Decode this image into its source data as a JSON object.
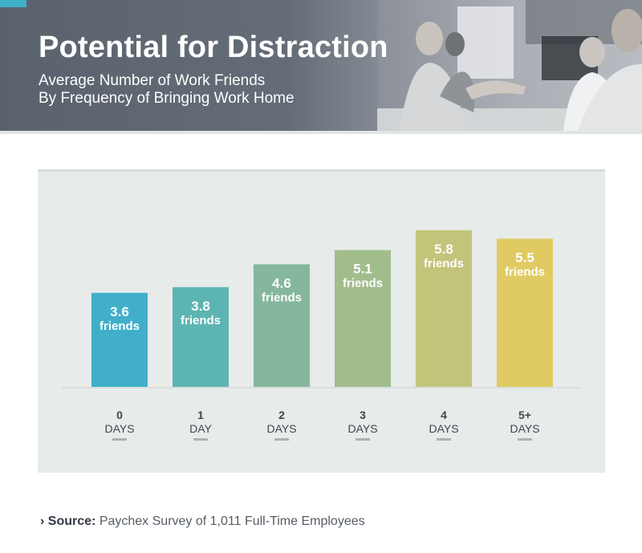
{
  "header": {
    "title": "Potential for Distraction",
    "subtitle_line1": "Average Number of Work Friends",
    "subtitle_line2": "By Frequency of Bringing Work Home"
  },
  "chart_data": {
    "type": "bar",
    "title": "Potential for Distraction",
    "subtitle": "Average Number of Work Friends By Frequency of Bringing Work Home",
    "categories": [
      {
        "num": "0",
        "unit": "DAYS"
      },
      {
        "num": "1",
        "unit": "DAY"
      },
      {
        "num": "2",
        "unit": "DAYS"
      },
      {
        "num": "3",
        "unit": "DAYS"
      },
      {
        "num": "4",
        "unit": "DAYS"
      },
      {
        "num": "5+",
        "unit": "DAYS"
      }
    ],
    "values": [
      3.6,
      3.8,
      4.6,
      5.1,
      5.8,
      5.5
    ],
    "value_labels": [
      "3.6",
      "3.8",
      "4.6",
      "5.1",
      "5.8",
      "5.5"
    ],
    "value_unit": "friends",
    "colors": [
      "#41afc9",
      "#5cb5b3",
      "#84b79c",
      "#a2bd8c",
      "#c2c47a",
      "#e0cb62"
    ],
    "ylim": [
      0,
      5.8
    ],
    "xlabel": "",
    "ylabel": "",
    "grid": false
  },
  "source": {
    "label": "Source:",
    "text": "Paychex Survey of 1,011 Full-Time Employees",
    "marker": "›"
  }
}
